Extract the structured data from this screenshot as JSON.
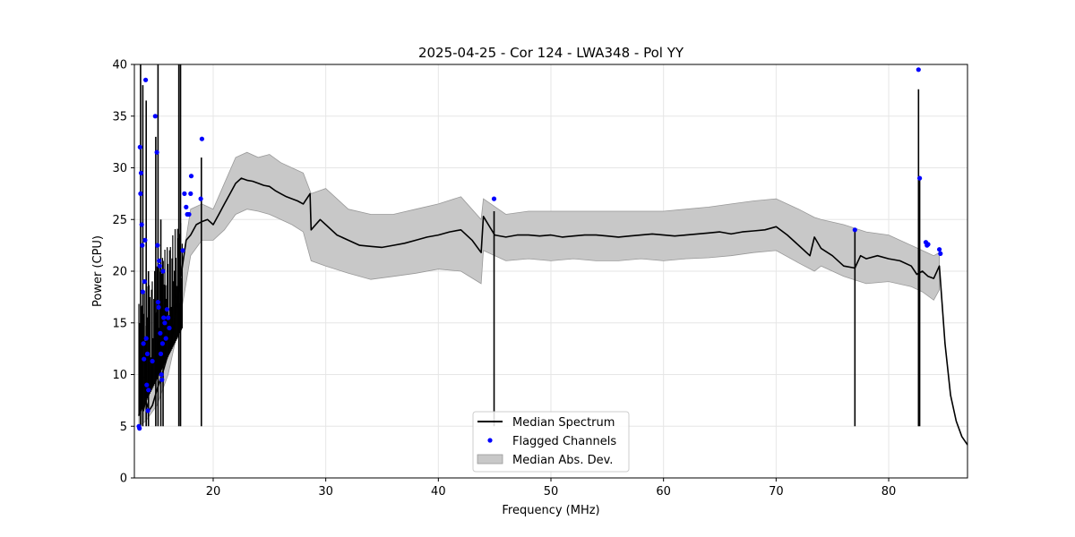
{
  "chart_data": {
    "type": "line",
    "title": "2025-04-25 - Cor 124 - LWA348 - Pol YY",
    "xlabel": "Frequency (MHz)",
    "ylabel": "Power (CPU)",
    "xlim": [
      13,
      87
    ],
    "ylim": [
      0,
      40
    ],
    "xticks": [
      20,
      30,
      40,
      50,
      60,
      70,
      80
    ],
    "yticks": [
      0,
      5,
      10,
      15,
      20,
      25,
      30,
      35,
      40
    ],
    "grid": true,
    "legend_position": "bottom-center",
    "legend": [
      "Median Spectrum",
      "Flagged Channels",
      "Median Abs. Dev."
    ],
    "colors": {
      "median": "#000000",
      "flagged": "#0000ff",
      "mad_fill": "#c8c8c8",
      "mad_edge": "#999999"
    },
    "median_spectrum": {
      "x": [
        13.4,
        13.6,
        13.8,
        14.0,
        14.3,
        14.6,
        15.0,
        15.3,
        15.6,
        16.0,
        16.4,
        16.8,
        17.2,
        17.6,
        18.0,
        18.5,
        19.0,
        19.5,
        20.0,
        20.5,
        21.0,
        21.5,
        22.0,
        22.5,
        23.0,
        23.5,
        24.0,
        24.5,
        25.0,
        25.5,
        26.0,
        26.5,
        27.0,
        27.5,
        28.0,
        28.6,
        28.7,
        29.5,
        30.0,
        31.0,
        32.0,
        33.0,
        34.0,
        35.0,
        36.0,
        37.0,
        38.0,
        39.0,
        40.0,
        41.0,
        42.0,
        43.0,
        43.8,
        44.0,
        45.0,
        46.0,
        47.0,
        48.0,
        49.0,
        50.0,
        51.0,
        52.0,
        53.0,
        54.0,
        55.0,
        56.0,
        57.0,
        58.0,
        59.0,
        60.0,
        61.0,
        62.0,
        63.0,
        64.0,
        65.0,
        66.0,
        67.0,
        68.0,
        69.0,
        70.0,
        71.0,
        72.0,
        73.0,
        73.4,
        74.0,
        75.0,
        76.0,
        77.0,
        77.5,
        78.0,
        79.0,
        80.0,
        81.0,
        82.0,
        82.5,
        83.0,
        83.5,
        84.0,
        84.5,
        85.0,
        85.5,
        86.0,
        86.5,
        87.0
      ],
      "y": [
        6.0,
        8.0,
        6.5,
        7.5,
        6.5,
        7.0,
        8.5,
        9.5,
        10.5,
        12.0,
        14.0,
        17.0,
        20.0,
        23.0,
        23.5,
        24.5,
        24.8,
        25.0,
        24.5,
        25.5,
        26.5,
        27.5,
        28.5,
        29.0,
        28.8,
        28.7,
        28.5,
        28.3,
        28.2,
        27.8,
        27.5,
        27.2,
        27.0,
        26.8,
        26.5,
        27.5,
        24.0,
        25.0,
        24.5,
        23.5,
        23.0,
        22.5,
        22.4,
        22.3,
        22.5,
        22.7,
        23.0,
        23.3,
        23.5,
        23.8,
        24.0,
        23.0,
        21.8,
        25.3,
        23.5,
        23.3,
        23.5,
        23.5,
        23.4,
        23.5,
        23.3,
        23.4,
        23.5,
        23.5,
        23.4,
        23.3,
        23.4,
        23.5,
        23.6,
        23.5,
        23.4,
        23.5,
        23.6,
        23.7,
        23.8,
        23.6,
        23.8,
        23.9,
        24.0,
        24.3,
        23.5,
        22.5,
        21.5,
        23.3,
        22.2,
        21.5,
        20.5,
        20.3,
        21.5,
        21.2,
        21.5,
        21.2,
        21.0,
        20.5,
        19.7,
        20.0,
        19.5,
        19.3,
        20.5,
        13.0,
        8.0,
        5.5,
        4.0,
        3.2
      ]
    },
    "mad_band": {
      "x": [
        13.4,
        14.0,
        15.0,
        16.0,
        17.0,
        18.0,
        19.0,
        20.0,
        21.0,
        22.0,
        23.0,
        24.0,
        25.0,
        26.0,
        27.0,
        28.0,
        28.7,
        30.0,
        32.0,
        34.0,
        36.0,
        38.0,
        40.0,
        42.0,
        43.8,
        44.0,
        46.0,
        48.0,
        50.0,
        52.0,
        54.0,
        56.0,
        58.0,
        60.0,
        62.0,
        64.0,
        66.0,
        68.0,
        70.0,
        72.0,
        73.4,
        74.0,
        76.0,
        78.0,
        80.0,
        82.0,
        83.0,
        84.0,
        84.5
      ],
      "low": [
        5.0,
        5.5,
        7.0,
        10.0,
        15.0,
        21.5,
        23.0,
        23.0,
        24.0,
        25.5,
        26.0,
        25.8,
        25.5,
        25.0,
        24.5,
        23.8,
        21.0,
        20.5,
        19.8,
        19.2,
        19.5,
        19.8,
        20.2,
        20.0,
        18.8,
        22.0,
        21.0,
        21.2,
        21.0,
        21.2,
        21.0,
        21.0,
        21.2,
        21.0,
        21.2,
        21.3,
        21.5,
        21.8,
        22.0,
        20.8,
        20.0,
        20.5,
        19.5,
        18.8,
        19.0,
        18.5,
        18.0,
        17.2,
        18.2
      ],
      "high": [
        9.0,
        10.0,
        12.0,
        14.0,
        19.0,
        26.0,
        26.5,
        26.0,
        28.5,
        31.0,
        31.5,
        31.0,
        31.3,
        30.5,
        30.0,
        29.5,
        27.5,
        28.0,
        26.0,
        25.5,
        25.5,
        26.0,
        26.5,
        27.2,
        25.0,
        27.0,
        25.5,
        25.8,
        25.8,
        25.8,
        25.8,
        25.8,
        25.8,
        25.8,
        26.0,
        26.2,
        26.5,
        26.8,
        27.0,
        26.0,
        25.2,
        25.0,
        24.5,
        23.8,
        23.5,
        22.5,
        22.0,
        21.5,
        21.8
      ]
    },
    "spikes": [
      {
        "x": 13.55,
        "y": 40.0
      },
      {
        "x": 13.75,
        "y": 38.0
      },
      {
        "x": 14.05,
        "y": 36.5
      },
      {
        "x": 14.25,
        "y": 20.0
      },
      {
        "x": 14.9,
        "y": 33.0
      },
      {
        "x": 15.1,
        "y": 40.0
      },
      {
        "x": 15.35,
        "y": 25.0
      },
      {
        "x": 15.55,
        "y": 21.0
      },
      {
        "x": 16.95,
        "y": 40.0
      },
      {
        "x": 17.1,
        "y": 40.0
      },
      {
        "x": 18.95,
        "y": 31.0
      },
      {
        "x": 44.95,
        "y": 25.8
      },
      {
        "x": 77.0,
        "y": 24.0
      },
      {
        "x": 82.65,
        "y": 37.6
      },
      {
        "x": 82.75,
        "y": 29.0
      }
    ],
    "flagged_channels": {
      "x": [
        13.4,
        13.45,
        13.5,
        13.55,
        13.6,
        13.65,
        13.7,
        13.75,
        13.8,
        13.85,
        13.9,
        13.95,
        14.0,
        14.05,
        14.1,
        14.15,
        14.2,
        14.25,
        14.6,
        14.85,
        15.0,
        15.05,
        15.1,
        15.15,
        15.2,
        15.25,
        15.3,
        15.35,
        15.4,
        15.45,
        15.5,
        15.55,
        15.6,
        15.7,
        15.8,
        15.9,
        16.0,
        16.1,
        17.3,
        17.45,
        17.6,
        17.7,
        17.85,
        18.0,
        18.05,
        18.9,
        19.0,
        44.95,
        77.0,
        82.65,
        82.75,
        83.3,
        83.4,
        83.5,
        84.5,
        84.6
      ],
      "y": [
        5.0,
        4.8,
        32.0,
        27.5,
        29.5,
        24.5,
        22.5,
        18.0,
        13.0,
        11.5,
        19.0,
        23.0,
        38.5,
        13.5,
        9.0,
        12.0,
        6.5,
        8.5,
        11.3,
        35.0,
        31.5,
        22.5,
        17.0,
        16.5,
        21.0,
        20.5,
        14.0,
        12.0,
        10.0,
        9.5,
        13.0,
        20.0,
        15.5,
        15.0,
        13.5,
        16.3,
        15.5,
        14.5,
        22.0,
        27.5,
        26.2,
        25.5,
        25.5,
        27.5,
        29.2,
        27.0,
        32.8,
        27.0,
        24.0,
        39.5,
        29.0,
        22.8,
        22.5,
        22.6,
        22.1,
        21.7
      ]
    }
  }
}
